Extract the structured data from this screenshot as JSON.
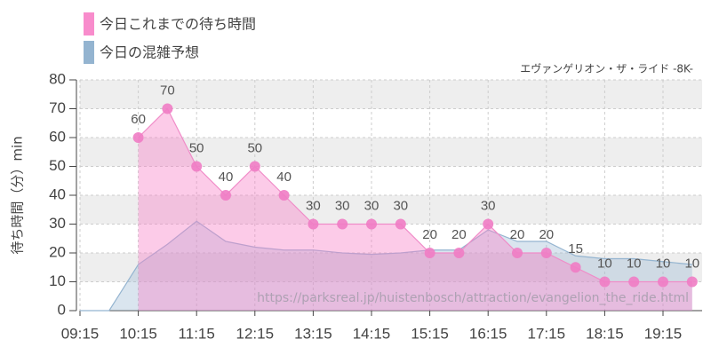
{
  "chart_data": {
    "type": "area",
    "subtitle": "エヴァンゲリオン・ザ・ライド -8K-",
    "y_label": "待ち時間（分）min",
    "watermark": "https://parksreal.jp/huistenbosch/attraction/evangelion_the_ride.html",
    "categories": [
      "09:15",
      null,
      "10:15",
      null,
      "11:15",
      null,
      "12:15",
      null,
      "13:15",
      null,
      "14:15",
      null,
      "15:15",
      null,
      "16:15",
      null,
      "17:15",
      null,
      "18:15",
      null,
      "19:15",
      null
    ],
    "series": [
      {
        "name": "今日の混雑予想",
        "color": "#94b4d0",
        "values": [
          0,
          0,
          16,
          23,
          31,
          24,
          22,
          21,
          21,
          20,
          19.5,
          20,
          21,
          21,
          28,
          24,
          24,
          19,
          18,
          18,
          17,
          16
        ]
      },
      {
        "name": "今日これまでの待ち時間",
        "color": "#f08cc8",
        "values": [
          null,
          null,
          60,
          70,
          50,
          40,
          50,
          40,
          30,
          30,
          30,
          30,
          20,
          20,
          30,
          20,
          20,
          15,
          10,
          10,
          10,
          10
        ]
      }
    ],
    "ylim": [
      0,
      80
    ],
    "yticks": [
      0,
      10,
      20,
      30,
      40,
      50,
      60,
      70,
      80
    ],
    "grid": true
  }
}
